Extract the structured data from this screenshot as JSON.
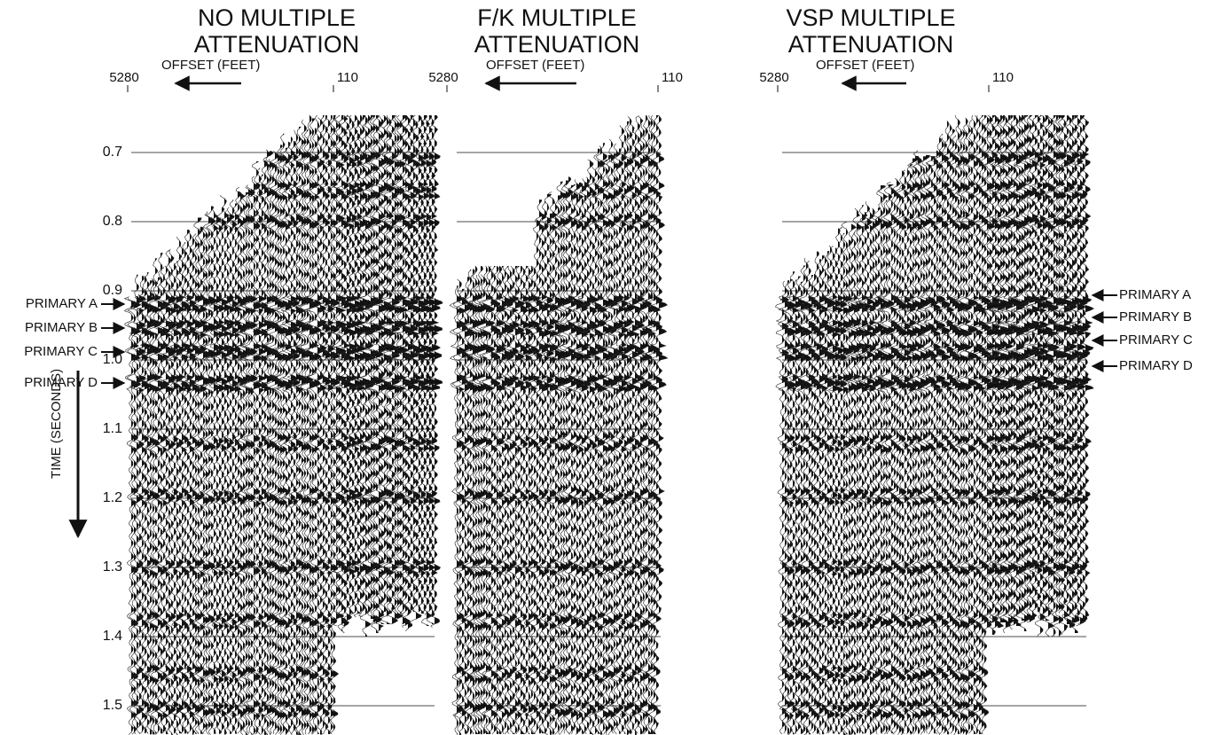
{
  "panels": [
    {
      "title_lines": [
        "NO MULTIPLE",
        "ATTENUATION"
      ],
      "far_offset": "5280",
      "offset_label": "OFFSET (FEET)",
      "near_offset": "110"
    },
    {
      "title_lines": [
        "F/K MULTIPLE",
        "ATTENUATION"
      ],
      "far_offset": "5280",
      "offset_label": "OFFSET (FEET)",
      "near_offset": "110"
    },
    {
      "title_lines": [
        "VSP MULTIPLE",
        "ATTENUATION"
      ],
      "far_offset": "5280",
      "offset_label": "OFFSET (FEET)",
      "near_offset": "110"
    }
  ],
  "time_axis": {
    "label": "TIME (SECONDS)",
    "ticks": [
      "0.7",
      "0.8",
      "0.9",
      "1.0",
      "1.1",
      "1.2",
      "1.3",
      "1.4",
      "1.5"
    ]
  },
  "left_labels": [
    "PRIMARY A",
    "PRIMARY B",
    "PRIMARY C",
    "PRIMARY D"
  ],
  "right_labels": [
    "PRIMARY A",
    "PRIMARY B",
    "PRIMARY C",
    "PRIMARY D"
  ]
}
